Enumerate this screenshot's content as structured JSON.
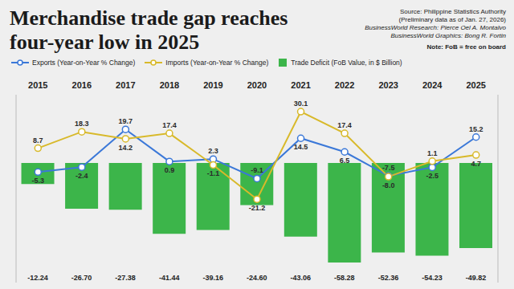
{
  "chart_data": {
    "type": "combo",
    "title": "Merchandise trade gap reaches four-year low in 2025",
    "categories": [
      "2015",
      "2016",
      "2017",
      "2018",
      "2019",
      "2020",
      "2021",
      "2022",
      "2023",
      "2024",
      "2025"
    ],
    "series": [
      {
        "name": "Exports (Year-on-Year % Change)",
        "type": "line",
        "color": "#3b78d8",
        "marker": "circle",
        "values": [
          -5.3,
          -2.4,
          19.7,
          0.9,
          2.3,
          -9.1,
          14.5,
          6.5,
          -7.5,
          -2.5,
          15.2
        ],
        "value_labels": [
          "-5.3",
          "-2.4",
          "19.7",
          "0.9",
          "2.3",
          "-9.1",
          "14.5",
          "6.5",
          "-7.5",
          "-2.5",
          "15.2"
        ]
      },
      {
        "name": "Imports (Year-on-Year % Change)",
        "type": "line",
        "color": "#d8b92a",
        "marker": "circle",
        "values": [
          8.7,
          18.3,
          14.2,
          17.4,
          -1.1,
          -21.2,
          30.1,
          17.4,
          -8.0,
          1.1,
          4.7
        ],
        "value_labels": [
          "8.7",
          "18.3",
          "14.2",
          "17.4",
          "-1.1",
          "-21.2",
          "30.1",
          "17.4",
          "-8.0",
          "1.1",
          "4.7"
        ]
      },
      {
        "name": "Trade Deficit (FoB Value, in $ Billion)",
        "type": "bar",
        "axis": "y2",
        "color": "#3cb54a",
        "values": [
          -12.24,
          -26.7,
          -27.38,
          -41.44,
          -39.16,
          -24.6,
          -43.06,
          -58.28,
          -52.36,
          -54.23,
          -49.82
        ],
        "value_labels": [
          "-12.24",
          "-26.70",
          "-27.38",
          "-41.44",
          "-39.16",
          "-24.60",
          "-43.06",
          "-58.28",
          "-52.36",
          "-54.23",
          "-49.82"
        ]
      }
    ],
    "ylim": [
      -70,
      40
    ],
    "yticks": [
      -70,
      0,
      40
    ],
    "y2lim": [
      -70,
      40
    ],
    "y2ticks": [
      -70,
      0,
      40
    ],
    "tick_labels": "x",
    "grid": false,
    "legend": "top",
    "data_labels": true,
    "source": [
      "Source: Philippine Statistics Authority",
      "(Preliminary data as of Jan. 27, 2026)",
      "BusinessWorld Research: Pierce Oel A. Montalvo",
      "BusinessWorld Graphics: Bong R. Fortin"
    ],
    "note": "Note: FoB = free on board"
  }
}
